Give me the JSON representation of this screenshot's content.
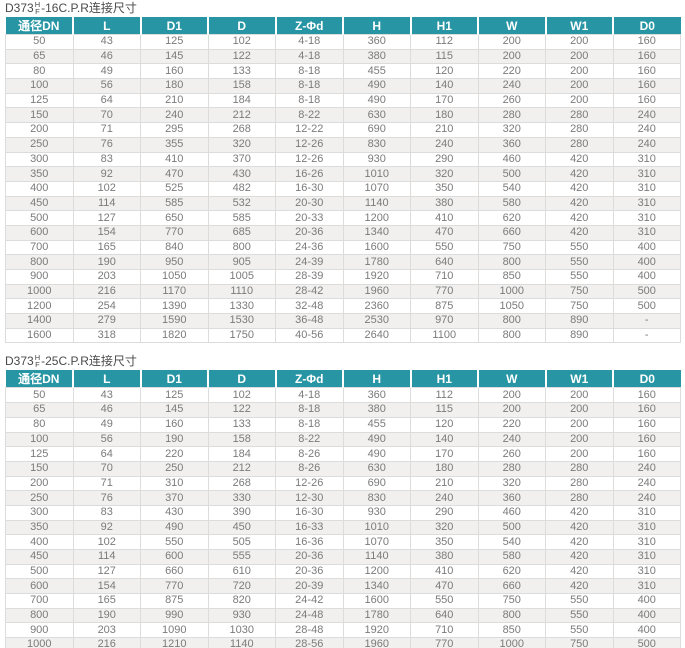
{
  "colors": {
    "header_bg": "#2795a4",
    "header_text": "#ffffff",
    "row_alt_bg": "#f1f0ef",
    "body_text": "#7b7b7b",
    "border": "#dcdcdc",
    "title_text": "#4a4a4a"
  },
  "tables": [
    {
      "title": {
        "model": "D373",
        "sup": "H",
        "sub": "F",
        "suffix": "-16C.P.R连接尺寸"
      },
      "columns": [
        "通径DN",
        "L",
        "D1",
        "D",
        "Z-Φd",
        "H",
        "H1",
        "W",
        "W1",
        "D0"
      ],
      "rows": [
        [
          "50",
          "43",
          "125",
          "102",
          "4-18",
          "360",
          "112",
          "200",
          "200",
          "160"
        ],
        [
          "65",
          "46",
          "145",
          "122",
          "4-18",
          "380",
          "115",
          "200",
          "200",
          "160"
        ],
        [
          "80",
          "49",
          "160",
          "133",
          "8-18",
          "455",
          "120",
          "220",
          "200",
          "160"
        ],
        [
          "100",
          "56",
          "180",
          "158",
          "8-18",
          "490",
          "140",
          "240",
          "200",
          "160"
        ],
        [
          "125",
          "64",
          "210",
          "184",
          "8-18",
          "490",
          "170",
          "260",
          "200",
          "160"
        ],
        [
          "150",
          "70",
          "240",
          "212",
          "8-22",
          "630",
          "180",
          "280",
          "280",
          "240"
        ],
        [
          "200",
          "71",
          "295",
          "268",
          "12-22",
          "690",
          "210",
          "320",
          "280",
          "240"
        ],
        [
          "250",
          "76",
          "355",
          "320",
          "12-26",
          "830",
          "240",
          "360",
          "280",
          "240"
        ],
        [
          "300",
          "83",
          "410",
          "370",
          "12-26",
          "930",
          "290",
          "460",
          "420",
          "310"
        ],
        [
          "350",
          "92",
          "470",
          "430",
          "16-26",
          "1010",
          "320",
          "500",
          "420",
          "310"
        ],
        [
          "400",
          "102",
          "525",
          "482",
          "16-30",
          "1070",
          "350",
          "540",
          "420",
          "310"
        ],
        [
          "450",
          "114",
          "585",
          "532",
          "20-30",
          "1140",
          "380",
          "580",
          "420",
          "310"
        ],
        [
          "500",
          "127",
          "650",
          "585",
          "20-33",
          "1200",
          "410",
          "620",
          "420",
          "310"
        ],
        [
          "600",
          "154",
          "770",
          "685",
          "20-36",
          "1340",
          "470",
          "660",
          "420",
          "310"
        ],
        [
          "700",
          "165",
          "840",
          "800",
          "24-36",
          "1600",
          "550",
          "750",
          "550",
          "400"
        ],
        [
          "800",
          "190",
          "950",
          "905",
          "24-39",
          "1780",
          "640",
          "800",
          "550",
          "400"
        ],
        [
          "900",
          "203",
          "1050",
          "1005",
          "28-39",
          "1920",
          "710",
          "850",
          "550",
          "400"
        ],
        [
          "1000",
          "216",
          "1170",
          "1110",
          "28-42",
          "1960",
          "770",
          "1000",
          "750",
          "500"
        ],
        [
          "1200",
          "254",
          "1390",
          "1330",
          "32-48",
          "2360",
          "875",
          "1050",
          "750",
          "500"
        ],
        [
          "1400",
          "279",
          "1590",
          "1530",
          "36-48",
          "2530",
          "970",
          "800",
          "890",
          "-"
        ],
        [
          "1600",
          "318",
          "1820",
          "1750",
          "40-56",
          "2640",
          "1100",
          "800",
          "890",
          "-"
        ]
      ]
    },
    {
      "title": {
        "model": "D373",
        "sup": "H",
        "sub": "F",
        "suffix": "-25C.P.R连接尺寸"
      },
      "columns": [
        "通径DN",
        "L",
        "D1",
        "D",
        "Z-Φd",
        "H",
        "H1",
        "W",
        "W1",
        "D0"
      ],
      "rows": [
        [
          "50",
          "43",
          "125",
          "102",
          "4-18",
          "360",
          "112",
          "200",
          "200",
          "160"
        ],
        [
          "65",
          "46",
          "145",
          "122",
          "8-18",
          "380",
          "115",
          "200",
          "200",
          "160"
        ],
        [
          "80",
          "49",
          "160",
          "133",
          "8-18",
          "455",
          "120",
          "220",
          "200",
          "160"
        ],
        [
          "100",
          "56",
          "190",
          "158",
          "8-22",
          "490",
          "140",
          "240",
          "200",
          "160"
        ],
        [
          "125",
          "64",
          "220",
          "184",
          "8-26",
          "490",
          "170",
          "260",
          "200",
          "160"
        ],
        [
          "150",
          "70",
          "250",
          "212",
          "8-26",
          "630",
          "180",
          "280",
          "280",
          "240"
        ],
        [
          "200",
          "71",
          "310",
          "268",
          "12-26",
          "690",
          "210",
          "320",
          "280",
          "240"
        ],
        [
          "250",
          "76",
          "370",
          "330",
          "12-30",
          "830",
          "240",
          "360",
          "280",
          "240"
        ],
        [
          "300",
          "83",
          "430",
          "390",
          "16-30",
          "930",
          "290",
          "460",
          "420",
          "310"
        ],
        [
          "350",
          "92",
          "490",
          "450",
          "16-33",
          "1010",
          "320",
          "500",
          "420",
          "310"
        ],
        [
          "400",
          "102",
          "550",
          "505",
          "16-36",
          "1070",
          "350",
          "540",
          "420",
          "310"
        ],
        [
          "450",
          "114",
          "600",
          "555",
          "20-36",
          "1140",
          "380",
          "580",
          "420",
          "310"
        ],
        [
          "500",
          "127",
          "660",
          "610",
          "20-36",
          "1200",
          "410",
          "620",
          "420",
          "310"
        ],
        [
          "600",
          "154",
          "770",
          "720",
          "20-39",
          "1340",
          "470",
          "660",
          "420",
          "310"
        ],
        [
          "700",
          "165",
          "875",
          "820",
          "24-42",
          "1600",
          "550",
          "750",
          "550",
          "400"
        ],
        [
          "800",
          "190",
          "990",
          "930",
          "24-48",
          "1780",
          "640",
          "800",
          "550",
          "400"
        ],
        [
          "900",
          "203",
          "1090",
          "1030",
          "28-48",
          "1920",
          "710",
          "850",
          "550",
          "400"
        ],
        [
          "1000",
          "216",
          "1210",
          "1140",
          "28-56",
          "1960",
          "770",
          "1000",
          "750",
          "500"
        ]
      ]
    }
  ]
}
